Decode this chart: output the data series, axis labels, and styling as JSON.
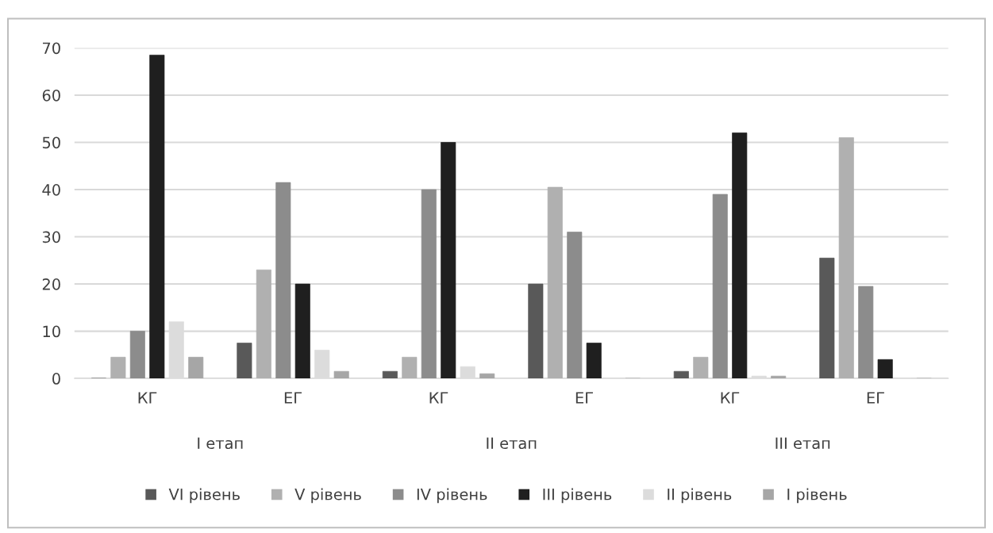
{
  "chart_data": {
    "type": "bar",
    "categories": [
      "КГ",
      "ЕГ",
      "КГ",
      "ЕГ",
      "КГ",
      "ЕГ"
    ],
    "annotations": [
      "I етап",
      "II етап",
      "III етап"
    ],
    "series": [
      {
        "name": "VI рівень",
        "color": "#595959",
        "values": [
          0,
          7.5,
          1.5,
          20,
          1.5,
          25.5
        ]
      },
      {
        "name": "V рівень",
        "color": "#b0b0b0",
        "values": [
          4.5,
          23,
          4.5,
          40.5,
          4.5,
          51
        ]
      },
      {
        "name": "IV рівень",
        "color": "#8c8c8c",
        "values": [
          10,
          41.5,
          40,
          31,
          39,
          19.5
        ]
      },
      {
        "name": "III рівень",
        "color": "#1f1f1f",
        "values": [
          68.5,
          20,
          50,
          7.5,
          52,
          4
        ]
      },
      {
        "name": "II рівень",
        "color": "#dcdcdc",
        "values": [
          12,
          6,
          2.5,
          0,
          0.5,
          0
        ]
      },
      {
        "name": "I рівень",
        "color": "#a6a6a6",
        "values": [
          4.5,
          1.5,
          1,
          0,
          0.5,
          0
        ]
      }
    ],
    "ylim": [
      0,
      70
    ],
    "yticks": [
      0,
      10,
      20,
      30,
      40,
      50,
      60,
      70
    ],
    "grid": "y",
    "legend": "bottom"
  }
}
